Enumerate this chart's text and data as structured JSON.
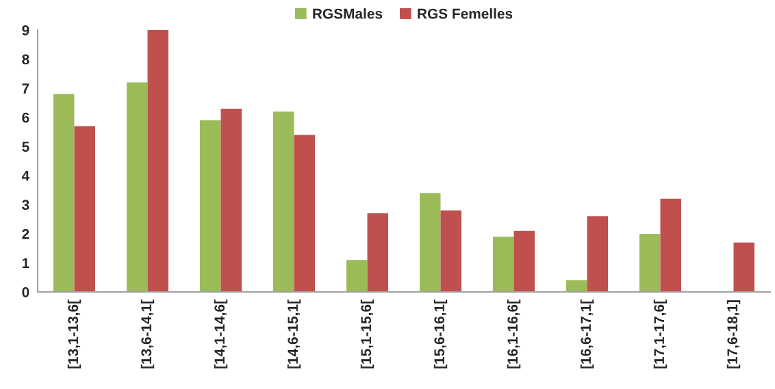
{
  "chart_data": {
    "type": "bar",
    "categories": [
      "[13,1-13,6[",
      "[13,6-14,1[",
      "[14,1-14,6[",
      "[14,6-15,1[",
      "[15,1-15,6[",
      "[15,6-16,1[",
      "[16,1-16,6[",
      "[16,6-17,1[",
      "[17,1-17,6[",
      "[17,6-18,1]"
    ],
    "series": [
      {
        "name": "RGSMales",
        "color": "#9bbb59",
        "values": [
          6.8,
          7.2,
          5.9,
          6.2,
          1.1,
          3.4,
          1.9,
          0.4,
          2.0,
          0
        ]
      },
      {
        "name": "RGS Femelles",
        "color": "#c0504d",
        "values": [
          5.7,
          9.0,
          6.3,
          5.4,
          2.7,
          2.8,
          2.1,
          2.6,
          3.2,
          1.7
        ]
      }
    ],
    "ylim": [
      0,
      9
    ],
    "yticks": [
      0,
      1,
      2,
      3,
      4,
      5,
      6,
      7,
      8,
      9
    ],
    "legend": "top"
  }
}
